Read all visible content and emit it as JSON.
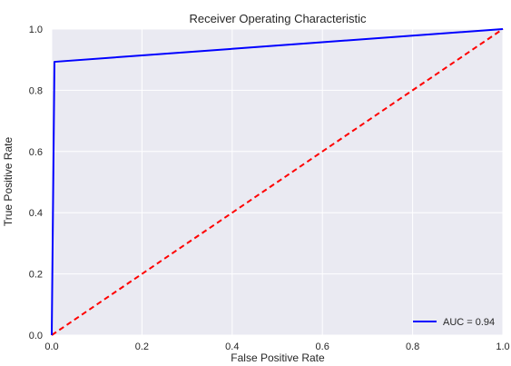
{
  "chart_data": {
    "type": "line",
    "title": "Receiver Operating Characteristic",
    "xlabel": "False Positive Rate",
    "ylabel": "True Positive Rate",
    "xlim": [
      0,
      1
    ],
    "ylim": [
      0,
      1
    ],
    "xticks": [
      "0.0",
      "0.2",
      "0.4",
      "0.6",
      "0.8",
      "1.0"
    ],
    "yticks": [
      "0.0",
      "0.2",
      "0.4",
      "0.6",
      "0.8",
      "1.0"
    ],
    "grid": true,
    "background_color": "#EAEAF2",
    "grid_color": "#FFFFFF",
    "legend_position": "lower-right",
    "series": [
      {
        "name": "AUC = 0.94",
        "color": "#0000FF",
        "line_style": "solid",
        "x": [
          0.0,
          0.006,
          1.0
        ],
        "y": [
          0.0,
          0.893,
          1.0
        ]
      },
      {
        "color": "#FF0000",
        "line_style": "dashed",
        "x": [
          0.0,
          1.0
        ],
        "y": [
          0.0,
          1.0
        ]
      }
    ]
  }
}
